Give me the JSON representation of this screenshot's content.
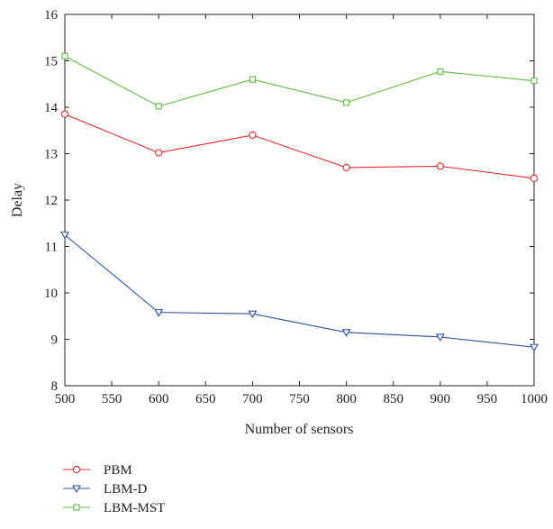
{
  "chart_data": {
    "type": "line",
    "title": "",
    "xlabel": "Number of sensors",
    "ylabel": "Delay",
    "xlim": [
      500,
      1000
    ],
    "ylim": [
      8,
      16
    ],
    "x_ticks": [
      500,
      550,
      600,
      650,
      700,
      750,
      800,
      850,
      900,
      950,
      1000
    ],
    "y_ticks": [
      8,
      9,
      10,
      11,
      12,
      13,
      14,
      15,
      16
    ],
    "grid": false,
    "legend_position": "bottom-left",
    "x": [
      500,
      600,
      700,
      800,
      900,
      1000
    ],
    "series": [
      {
        "name": "PBM",
        "color": "#e8262b",
        "marker": "circle",
        "values": [
          13.85,
          13.02,
          13.4,
          12.7,
          12.73,
          12.47
        ]
      },
      {
        "name": "LBM-D",
        "color": "#2b4fa3",
        "marker": "triangle-down",
        "values": [
          11.25,
          9.58,
          9.55,
          9.15,
          9.05,
          8.83
        ]
      },
      {
        "name": "LBM-MST",
        "color": "#5bbd3c",
        "marker": "square",
        "values": [
          15.1,
          14.02,
          14.6,
          14.1,
          14.77,
          14.57
        ]
      }
    ]
  }
}
